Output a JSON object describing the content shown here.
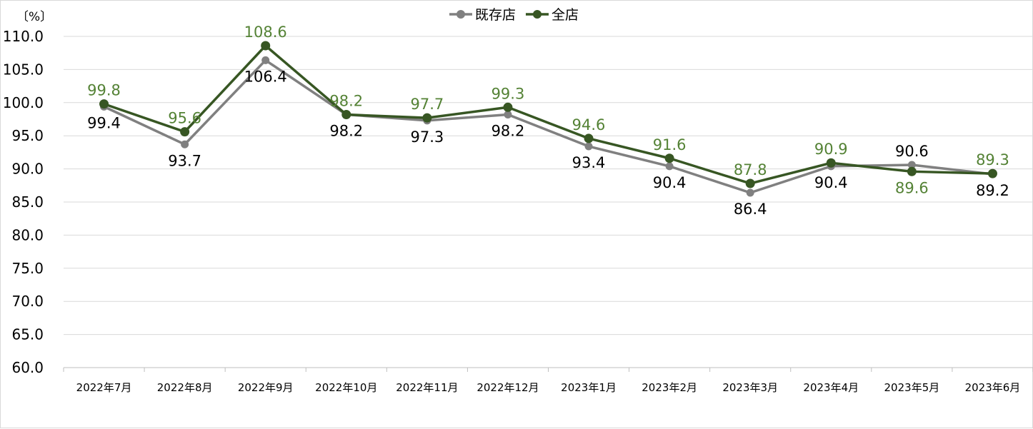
{
  "chart_data": {
    "type": "line",
    "title": "",
    "xlabel": "",
    "ylabel": "",
    "y_unit_label": "〔%〕",
    "ylim": [
      60.0,
      110.0
    ],
    "ytick_step": 5.0,
    "grid": true,
    "legend_position": "top-center",
    "categories": [
      "2022年7月",
      "2022年8月",
      "2022年9月",
      "2022年10月",
      "2022年11月",
      "2022年12月",
      "2023年1月",
      "2023年2月",
      "2023年3月",
      "2023年4月",
      "2023年5月",
      "2023年6月"
    ],
    "series": [
      {
        "name": "既存店",
        "color": "#808080",
        "label_color": "#000000",
        "values": [
          99.4,
          93.7,
          106.4,
          98.2,
          97.3,
          98.2,
          93.4,
          90.4,
          86.4,
          90.4,
          90.6,
          89.2
        ],
        "labels": [
          "99.4",
          "93.7",
          "106.4",
          "98.2",
          "97.3",
          "98.2",
          "93.4",
          "90.4",
          "86.4",
          "90.4",
          "90.6",
          "89.2"
        ]
      },
      {
        "name": "全店",
        "color": "#375623",
        "label_color": "#548235",
        "values": [
          99.8,
          95.6,
          108.6,
          98.2,
          97.7,
          99.3,
          94.6,
          91.6,
          87.8,
          90.9,
          89.6,
          89.3
        ],
        "labels": [
          "99.8",
          "95.6",
          "108.6",
          "98.2",
          "97.7",
          "99.3",
          "94.6",
          "91.6",
          "87.8",
          "90.9",
          "89.6",
          "89.3"
        ]
      }
    ]
  }
}
